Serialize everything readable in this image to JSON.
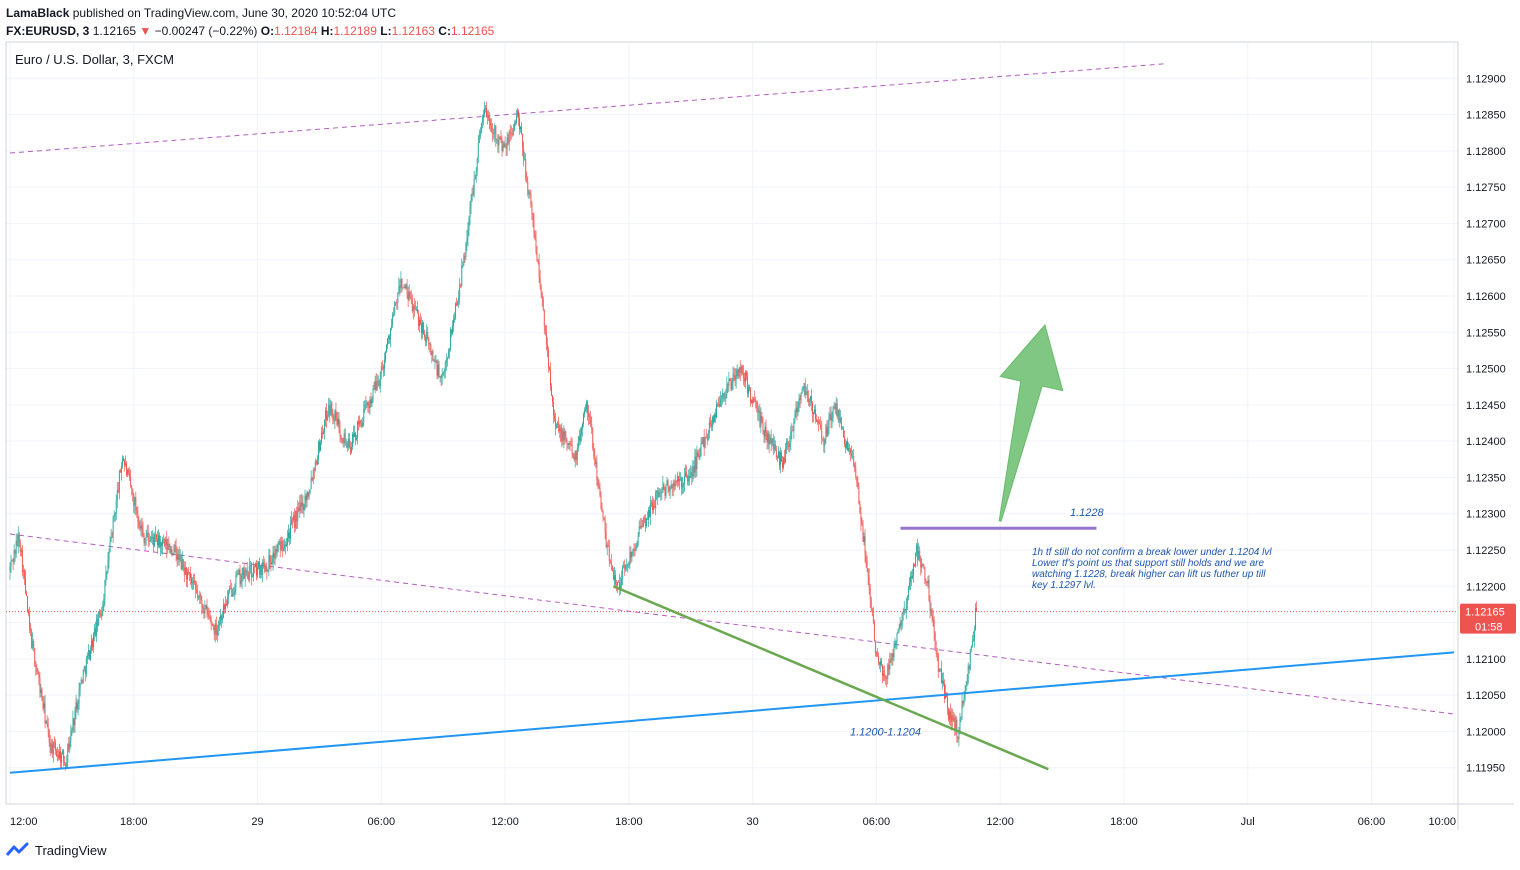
{
  "header": {
    "author": "LamaBlack",
    "published": "published on TradingView.com, June 30, 2020 10:52:04 UTC",
    "symbol": "FX:EURUSD, 3",
    "last": "1.12165",
    "arrow": "▼",
    "change": "−0.00247 (−0.22%)",
    "o_label": "O:",
    "o_value": "1.12184",
    "h_label": "H:",
    "h_value": "1.12189",
    "l_label": "L:",
    "l_value": "1.12163",
    "c_label": "C:",
    "c_value": "1.12165"
  },
  "footer": {
    "brand": "TradingView"
  },
  "colors": {
    "up": "#26a69a",
    "down": "#ef5350",
    "grid": "#f0f3fa",
    "trend_blue": "#2196f3",
    "trend_green": "#6aa84f",
    "channel": "#9c27b0",
    "level_purple": "#9575cd",
    "arrow_green": "#81c784",
    "price_tag": "#ef5350",
    "note_blue": "#1e56b0"
  },
  "chart_data": {
    "type": "candlestick",
    "title": "Euro / U.S. Dollar, 3, FXCM",
    "y_ticks": [
      "1.12900",
      "1.12850",
      "1.12800",
      "1.12750",
      "1.12700",
      "1.12650",
      "1.12600",
      "1.12550",
      "1.12500",
      "1.12450",
      "1.12400",
      "1.12350",
      "1.12300",
      "1.12250",
      "1.12200",
      "1.12150",
      "1.12100",
      "1.12050",
      "1.12000",
      "1.11950"
    ],
    "x_ticks": [
      "12:00",
      "18:00",
      "29",
      "06:00",
      "12:00",
      "18:00",
      "30",
      "06:00",
      "12:00",
      "18:00",
      "Jul",
      "06:00",
      "10:00"
    ],
    "ylim": [
      1.119,
      1.1295
    ],
    "current_price": "1.12165",
    "countdown": "01:58",
    "price_path": [
      [
        "06-28 12:00",
        1.1222
      ],
      [
        "06-28 12:30",
        1.1227
      ],
      [
        "06-28 13:00",
        1.1214
      ],
      [
        "06-28 14:00",
        1.1198
      ],
      [
        "06-28 14:45",
        1.1196
      ],
      [
        "06-28 15:30",
        1.1207
      ],
      [
        "06-28 16:30",
        1.1217
      ],
      [
        "06-28 17:30",
        1.1238
      ],
      [
        "06-28 18:30",
        1.1227
      ],
      [
        "06-28 20:00",
        1.1225
      ],
      [
        "06-28 22:00",
        1.1214
      ],
      [
        "06-28 23:00",
        1.1221
      ],
      [
        "06-29 00:30",
        1.1223
      ],
      [
        "06-29 01:30",
        1.1227
      ],
      [
        "06-29 02:30",
        1.1233
      ],
      [
        "06-29 03:30",
        1.1245
      ],
      [
        "06-29 04:30",
        1.1239
      ],
      [
        "06-29 06:00",
        1.1249
      ],
      [
        "06-29 07:00",
        1.1262
      ],
      [
        "06-29 08:00",
        1.1256
      ],
      [
        "06-29 09:00",
        1.1248
      ],
      [
        "06-29 10:00",
        1.1264
      ],
      [
        "06-29 11:00",
        1.1286
      ],
      [
        "06-29 12:00",
        1.128
      ],
      [
        "06-29 12:40",
        1.1285
      ],
      [
        "06-29 13:30",
        1.1268
      ],
      [
        "06-29 14:30",
        1.1242
      ],
      [
        "06-29 15:30",
        1.1238
      ],
      [
        "06-29 16:00",
        1.1246
      ],
      [
        "06-29 17:00",
        1.1225
      ],
      [
        "06-29 17:30",
        1.122
      ],
      [
        "06-29 18:30",
        1.1227
      ],
      [
        "06-29 19:30",
        1.1233
      ],
      [
        "06-29 21:00",
        1.1235
      ],
      [
        "06-29 22:30",
        1.1246
      ],
      [
        "06-29 23:30",
        1.125
      ],
      [
        "06-30 00:30",
        1.1242
      ],
      [
        "06-30 01:30",
        1.1237
      ],
      [
        "06-30 02:30",
        1.1248
      ],
      [
        "06-30 03:30",
        1.124
      ],
      [
        "06-30 04:00",
        1.1245
      ],
      [
        "06-30 05:00",
        1.1236
      ],
      [
        "06-30 05:30",
        1.1225
      ],
      [
        "06-30 06:00",
        1.1212
      ],
      [
        "06-30 06:30",
        1.1207
      ],
      [
        "06-30 07:00",
        1.1213
      ],
      [
        "06-30 07:30",
        1.1218
      ],
      [
        "06-30 08:00",
        1.1225
      ],
      [
        "06-30 08:30",
        1.1221
      ],
      [
        "06-30 09:00",
        1.121
      ],
      [
        "06-30 09:30",
        1.1203
      ],
      [
        "06-30 10:00",
        1.12
      ],
      [
        "06-30 10:30",
        1.1208
      ],
      [
        "06-30 10:52",
        1.12165
      ]
    ],
    "drawings": {
      "blue_trendline": [
        [
          "06-28 12:00",
          1.11943
        ],
        [
          "07-01 10:00",
          1.12109
        ]
      ],
      "green_trendline": [
        [
          "06-29 17:15",
          1.122
        ],
        [
          "06-30 14:20",
          1.11948
        ]
      ],
      "channel_upper": [
        [
          "06-28 12:00",
          1.12797
        ],
        [
          "06-30 20:00",
          1.1292
        ]
      ],
      "channel_lower": [
        [
          "06-28 12:00",
          1.12272
        ],
        [
          "07-01 10:00",
          1.12024
        ]
      ],
      "resistance_level": [
        [
          "06-30 07:10",
          1.1228
        ],
        [
          "06-30 16:40",
          1.1228
        ]
      ],
      "arrow": [
        [
          "06-30 12:00",
          1.1229
        ],
        [
          "06-30 14:10",
          1.1256
        ]
      ]
    },
    "annotations": {
      "level_label": "1.1228",
      "support_label": "1.1200-1.1204",
      "note": [
        "1h tf still do not confirm a break lower under 1.1204 lvl",
        "Lower tf's point us that support still holds and we are",
        "watching 1.1228, break higher can lift us futher up till",
        "key 1.1297 lvl."
      ]
    }
  }
}
